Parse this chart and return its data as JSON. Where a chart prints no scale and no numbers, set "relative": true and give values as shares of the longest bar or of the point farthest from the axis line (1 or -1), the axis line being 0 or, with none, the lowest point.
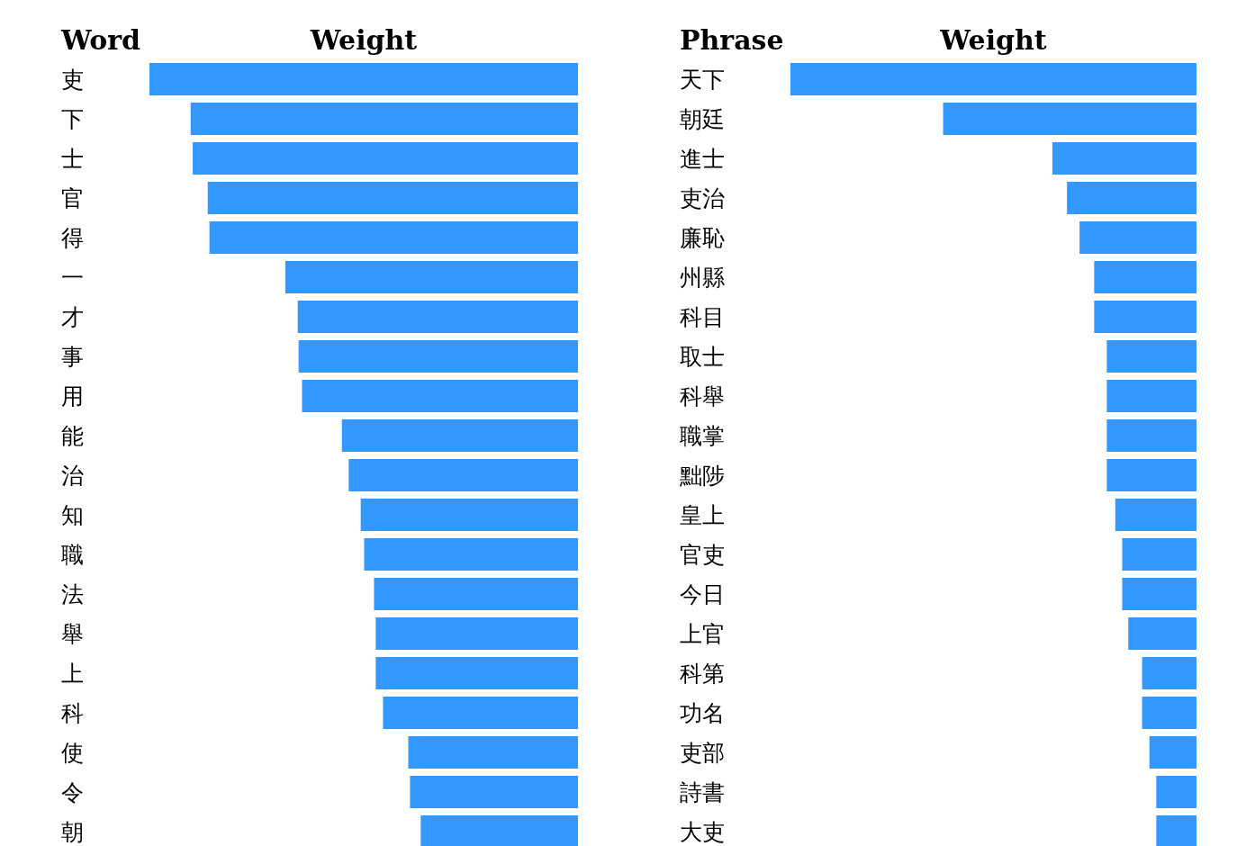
{
  "chart_data": [
    {
      "type": "bar",
      "orientation": "horizontal",
      "relative": true,
      "ylabel": "Word",
      "xlabel": "Weight",
      "color": "#3399ff",
      "categories": [
        "吏",
        "下",
        "士",
        "官",
        "得",
        "一",
        "才",
        "事",
        "用",
        "能",
        "治",
        "知",
        "職",
        "法",
        "舉",
        "上",
        "科",
        "使",
        "令",
        "朝"
      ],
      "values": [
        1,
        0.904,
        0.899,
        0.864,
        0.86,
        0.683,
        0.654,
        0.652,
        0.644,
        0.551,
        0.535,
        0.507,
        0.499,
        0.476,
        0.472,
        0.472,
        0.455,
        0.396,
        0.392,
        0.367
      ]
    },
    {
      "type": "bar",
      "orientation": "horizontal",
      "relative": true,
      "ylabel": "Phrase",
      "xlabel": "Weight",
      "color": "#3399ff",
      "categories": [
        "天下",
        "朝廷",
        "進士",
        "吏治",
        "廉恥",
        "州縣",
        "科目",
        "取士",
        "科舉",
        "職掌",
        "黜陟",
        "皇上",
        "官吏",
        "今日",
        "上官",
        "科第",
        "功名",
        "吏部",
        "詩書",
        "大吏"
      ],
      "values": [
        1,
        0.624,
        0.355,
        0.319,
        0.288,
        0.252,
        0.252,
        0.221,
        0.221,
        0.221,
        0.221,
        0.2,
        0.183,
        0.183,
        0.168,
        0.134,
        0.134,
        0.116,
        0.099,
        0.099
      ]
    }
  ]
}
